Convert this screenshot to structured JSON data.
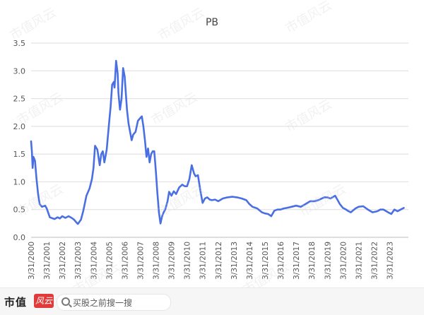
{
  "chart_data": {
    "type": "line",
    "title": "PB",
    "xlabel": "",
    "ylabel": "",
    "ylim": [
      0,
      3.5
    ],
    "yticks": [
      "0.0",
      "0.5",
      "1.0",
      "1.5",
      "2.0",
      "2.5",
      "3.0",
      "3.5"
    ],
    "xticks": [
      "3/31/2000",
      "3/31/2001",
      "3/31/2002",
      "3/31/2003",
      "3/31/2004",
      "3/31/2005",
      "3/31/2006",
      "3/31/2007",
      "3/31/2008",
      "3/31/2009",
      "3/31/2010",
      "3/31/2011",
      "3/31/2012",
      "3/31/2013",
      "3/31/2014",
      "3/31/2015",
      "3/31/2016",
      "3/31/2017",
      "3/31/2018",
      "3/31/2019",
      "3/31/2020",
      "3/31/2021",
      "3/31/2022",
      "3/31/2023"
    ],
    "grid": true,
    "line_color": "#4a6fe3",
    "series": [
      {
        "name": "",
        "x": [
          2000.0,
          2000.05,
          2000.1,
          2000.15,
          2000.25,
          2000.35,
          2000.45,
          2000.55,
          2000.7,
          2000.8,
          2000.9,
          2001.0,
          2001.2,
          2001.5,
          2001.7,
          2001.85,
          2002.0,
          2002.2,
          2002.4,
          2002.6,
          2002.75,
          2002.9,
          2003.0,
          2003.2,
          2003.35,
          2003.55,
          2003.75,
          2003.9,
          2004.0,
          2004.1,
          2004.25,
          2004.4,
          2004.5,
          2004.6,
          2004.7,
          2004.85,
          2005.0,
          2005.1,
          2005.2,
          2005.3,
          2005.35,
          2005.45,
          2005.55,
          2005.6,
          2005.7,
          2005.8,
          2005.9,
          2006.0,
          2006.05,
          2006.15,
          2006.25,
          2006.35,
          2006.45,
          2006.55,
          2006.7,
          2006.85,
          2007.0,
          2007.1,
          2007.2,
          2007.3,
          2007.4,
          2007.5,
          2007.6,
          2007.7,
          2007.8,
          2007.9,
          2008.0,
          2008.1,
          2008.2,
          2008.3,
          2008.4,
          2008.5,
          2008.6,
          2008.75,
          2008.85,
          2009.0,
          2009.15,
          2009.3,
          2009.5,
          2009.7,
          2009.85,
          2010.0,
          2010.15,
          2010.3,
          2010.45,
          2010.55,
          2010.7,
          2010.85,
          2011.0,
          2011.15,
          2011.3,
          2011.45,
          2011.6,
          2011.8,
          2012.0,
          2012.3,
          2012.6,
          2012.9,
          2013.2,
          2013.5,
          2013.8,
          2014.0,
          2014.2,
          2014.5,
          2014.8,
          2015.0,
          2015.2,
          2015.4,
          2015.6,
          2015.8,
          2016.0,
          2016.2,
          2016.4,
          2016.7,
          2017.0,
          2017.3,
          2017.6,
          2017.9,
          2018.2,
          2018.5,
          2018.8,
          2019.0,
          2019.2,
          2019.5,
          2019.8,
          2020.0,
          2020.2,
          2020.3,
          2020.5,
          2020.8,
          2021.0,
          2021.3,
          2021.6,
          2021.9,
          2022.2,
          2022.4,
          2022.6,
          2022.9,
          2023.1,
          2023.3,
          2023.5,
          2023.7,
          2023.9
        ],
        "values": [
          1.73,
          1.55,
          1.25,
          1.45,
          1.38,
          1.05,
          0.78,
          0.6,
          0.55,
          0.56,
          0.57,
          0.52,
          0.36,
          0.33,
          0.36,
          0.34,
          0.38,
          0.35,
          0.38,
          0.35,
          0.32,
          0.27,
          0.24,
          0.32,
          0.48,
          0.75,
          0.88,
          1.05,
          1.25,
          1.65,
          1.58,
          1.3,
          1.5,
          1.55,
          1.35,
          1.58,
          2.05,
          2.35,
          2.75,
          2.8,
          2.7,
          3.18,
          2.95,
          2.6,
          2.3,
          2.5,
          3.05,
          2.9,
          2.7,
          2.3,
          2.05,
          1.9,
          1.75,
          1.85,
          1.9,
          2.1,
          2.15,
          2.18,
          2.0,
          1.75,
          1.45,
          1.6,
          1.35,
          1.5,
          1.55,
          1.55,
          1.2,
          0.8,
          0.45,
          0.25,
          0.38,
          0.45,
          0.5,
          0.65,
          0.82,
          0.75,
          0.83,
          0.78,
          0.9,
          0.95,
          0.92,
          0.92,
          1.05,
          1.3,
          1.15,
          1.1,
          1.12,
          0.85,
          0.62,
          0.7,
          0.72,
          0.68,
          0.67,
          0.68,
          0.65,
          0.7,
          0.72,
          0.73,
          0.72,
          0.7,
          0.67,
          0.6,
          0.55,
          0.52,
          0.45,
          0.43,
          0.42,
          0.38,
          0.48,
          0.5,
          0.5,
          0.52,
          0.53,
          0.55,
          0.57,
          0.55,
          0.6,
          0.65,
          0.65,
          0.68,
          0.72,
          0.72,
          0.7,
          0.75,
          0.6,
          0.53,
          0.5,
          0.48,
          0.45,
          0.52,
          0.55,
          0.56,
          0.5,
          0.45,
          0.47,
          0.5,
          0.5,
          0.45,
          0.42,
          0.5,
          0.47,
          0.5,
          0.53
        ]
      }
    ]
  },
  "watermark": "市值风云",
  "footer": {
    "brand": "市值",
    "brand_badge": "风云",
    "search_placeholder": "买股之前搜一搜"
  }
}
